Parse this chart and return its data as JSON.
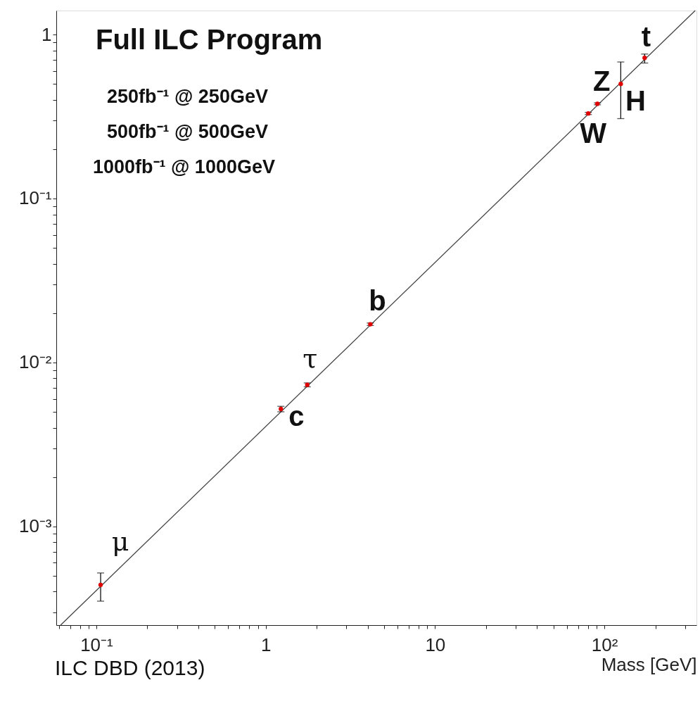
{
  "chart_data": {
    "type": "scatter",
    "title": "Full ILC Program",
    "xlabel": "Mass [GeV]",
    "log": "xy",
    "grid": false,
    "marker": "circle",
    "xlim": [
      0.058,
      350
    ],
    "ylim": [
      0.00025,
      1.4
    ],
    "xticks": [
      {
        "value": 0.06,
        "label": null
      },
      {
        "value": 0.07,
        "label": null
      },
      {
        "value": 0.08,
        "label": null
      },
      {
        "value": 0.09,
        "label": null
      },
      {
        "value": 0.1,
        "label": "10⁻¹"
      },
      {
        "value": 0.2,
        "label": null
      },
      {
        "value": 0.3,
        "label": null
      },
      {
        "value": 0.4,
        "label": null
      },
      {
        "value": 0.5,
        "label": null
      },
      {
        "value": 0.6,
        "label": null
      },
      {
        "value": 0.7,
        "label": null
      },
      {
        "value": 0.8,
        "label": null
      },
      {
        "value": 0.9,
        "label": null
      },
      1,
      {
        "value": 2,
        "label": null
      },
      {
        "value": 3,
        "label": null
      },
      {
        "value": 4,
        "label": null
      },
      {
        "value": 5,
        "label": null
      },
      {
        "value": 6,
        "label": null
      },
      {
        "value": 7,
        "label": null
      },
      {
        "value": 8,
        "label": null
      },
      {
        "value": 9,
        "label": null
      },
      10,
      {
        "value": 20,
        "label": null
      },
      {
        "value": 30,
        "label": null
      },
      {
        "value": 40,
        "label": null
      },
      {
        "value": 50,
        "label": null
      },
      {
        "value": 60,
        "label": null
      },
      {
        "value": 70,
        "label": null
      },
      {
        "value": 80,
        "label": null
      },
      {
        "value": 90,
        "label": null
      },
      {
        "value": 100,
        "label": "10²"
      },
      {
        "value": 200,
        "label": null
      },
      {
        "value": 300,
        "label": null
      }
    ],
    "yticks": [
      {
        "value": 0.0003,
        "label": null
      },
      {
        "value": 0.0004,
        "label": null
      },
      {
        "value": 0.0005,
        "label": null
      },
      {
        "value": 0.0006,
        "label": null
      },
      {
        "value": 0.0007,
        "label": null
      },
      {
        "value": 0.0008,
        "label": null
      },
      {
        "value": 0.0009,
        "label": null
      },
      {
        "value": 0.001,
        "label": "10⁻³"
      },
      {
        "value": 0.002,
        "label": null
      },
      {
        "value": 0.003,
        "label": null
      },
      {
        "value": 0.004,
        "label": null
      },
      {
        "value": 0.005,
        "label": null
      },
      {
        "value": 0.006,
        "label": null
      },
      {
        "value": 0.007,
        "label": null
      },
      {
        "value": 0.008,
        "label": null
      },
      {
        "value": 0.009,
        "label": null
      },
      {
        "value": 0.01,
        "label": "10⁻²"
      },
      {
        "value": 0.02,
        "label": null
      },
      {
        "value": 0.03,
        "label": null
      },
      {
        "value": 0.04,
        "label": null
      },
      {
        "value": 0.05,
        "label": null
      },
      {
        "value": 0.06,
        "label": null
      },
      {
        "value": 0.07,
        "label": null
      },
      {
        "value": 0.08,
        "label": null
      },
      {
        "value": 0.09,
        "label": null
      },
      {
        "value": 0.1,
        "label": "10⁻¹"
      },
      {
        "value": 0.2,
        "label": null
      },
      {
        "value": 0.3,
        "label": null
      },
      {
        "value": 0.4,
        "label": null
      },
      {
        "value": 0.5,
        "label": null
      },
      {
        "value": 0.6,
        "label": null
      },
      {
        "value": 0.7,
        "label": null
      },
      {
        "value": 0.8,
        "label": null
      },
      {
        "value": 0.9,
        "label": null
      },
      1
    ],
    "x": [
      0.106,
      1.23,
      1.76,
      4.15,
      80.4,
      91,
      125,
      173
    ],
    "series": [
      {
        "type": "scatter",
        "color": "#e00000",
        "values": [
          0.00044,
          0.0052,
          0.0073,
          0.0171,
          0.33,
          0.378,
          0.5,
          0.72
        ],
        "errors": [
          [
            0.00035,
            0.00052
          ],
          0.0002,
          0.0002,
          0.0003,
          0.005,
          0.005,
          [
            0.307,
            0.68
          ],
          [
            0.67,
            0.76
          ]
        ]
      },
      {
        "type": "line",
        "color": "#444444",
        "marker": "none",
        "x": [
          0.0615,
          344
        ],
        "values": [
          0.00025,
          1.4
        ]
      }
    ],
    "annotations": [
      "250fb⁻¹ @ 250GeV",
      "500fb⁻¹ @ 500GeV",
      "1000fb⁻¹ @ 1000GeV",
      {
        "text": "μ",
        "x": 0.106,
        "y": 0.00044
      },
      {
        "text": "c",
        "x": 1.23,
        "y": 0.0052
      },
      {
        "text": "τ",
        "x": 1.76,
        "y": 0.0073
      },
      {
        "text": "b",
        "x": 4.15,
        "y": 0.0171
      },
      {
        "text": "W",
        "x": 80.4,
        "y": 0.33
      },
      {
        "text": "Z",
        "x": 91,
        "y": 0.378
      },
      {
        "text": "H",
        "x": 125,
        "y": 0.5
      },
      {
        "text": "t",
        "x": 173,
        "y": 0.72
      },
      "ILC DBD (2013)"
    ]
  }
}
